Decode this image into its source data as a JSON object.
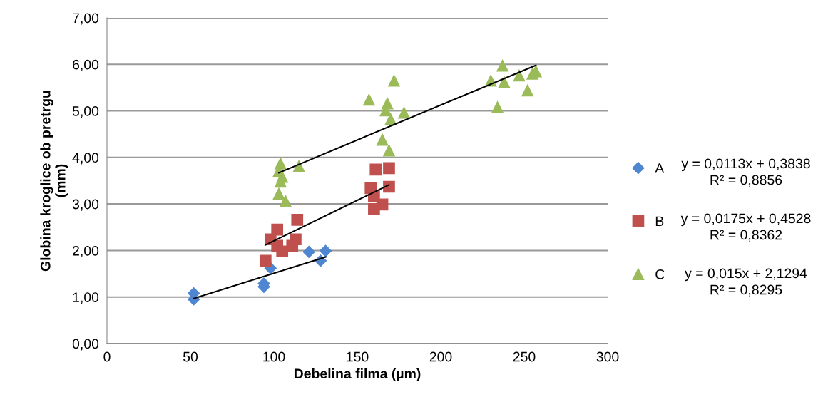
{
  "chart_data": {
    "type": "scatter",
    "xlabel": "Debelina filma (µm)",
    "ylabel": "Globina kroglice ob pretrgu\n(mm)",
    "xlim": [
      0,
      300
    ],
    "xticks": [
      0,
      50,
      100,
      150,
      200,
      250,
      300
    ],
    "ylim": [
      0,
      7
    ],
    "yticks": [
      {
        "value": 0,
        "label": "0,00"
      },
      {
        "value": 1,
        "label": "1,00"
      },
      {
        "value": 2,
        "label": "2,00"
      },
      {
        "value": 3,
        "label": "3,00"
      },
      {
        "value": 4,
        "label": "4,00"
      },
      {
        "value": 5,
        "label": "5,00"
      },
      {
        "value": 6,
        "label": "6,00"
      },
      {
        "value": 7,
        "label": "7,00"
      }
    ],
    "grid": "y",
    "legend": "right",
    "series": [
      {
        "name": "A",
        "color": "#4f86d0",
        "marker": "diamond",
        "x": [
          52,
          52,
          94,
          94,
          98,
          121,
          128,
          131
        ],
        "values": [
          1.08,
          0.95,
          1.29,
          1.22,
          1.62,
          1.97,
          1.78,
          1.99
        ]
      },
      {
        "name": "B",
        "color": "#c0504d",
        "marker": "square",
        "x": [
          95,
          98,
          102,
          105,
          102,
          113,
          114,
          111,
          161,
          169,
          158,
          169,
          160,
          165,
          160
        ],
        "values": [
          1.78,
          2.24,
          2.45,
          1.98,
          2.1,
          2.24,
          2.66,
          2.1,
          3.74,
          3.77,
          3.34,
          3.37,
          3.17,
          2.99,
          2.89
        ]
      },
      {
        "name": "C",
        "color": "#9bbb59",
        "marker": "triangle",
        "x": [
          104,
          103,
          103,
          104,
          107,
          115,
          105,
          157,
          168,
          167,
          170,
          178,
          165,
          169,
          172,
          230,
          237,
          238,
          234,
          247,
          252,
          255,
          257
        ],
        "values": [
          3.87,
          3.71,
          3.22,
          3.48,
          3.06,
          3.81,
          3.58,
          5.24,
          5.16,
          5.01,
          4.82,
          4.96,
          4.38,
          4.15,
          5.65,
          5.65,
          5.97,
          5.62,
          5.08,
          5.76,
          5.44,
          5.8,
          5.85
        ]
      },
      {
        "type": "line",
        "color": "#000000",
        "marker": "none",
        "x": [
          52,
          131
        ],
        "values": [
          0.97,
          1.86
        ]
      },
      {
        "type": "line",
        "color": "#000000",
        "marker": "none",
        "x": [
          95,
          169
        ],
        "values": [
          2.12,
          3.41
        ]
      },
      {
        "type": "line",
        "color": "#000000",
        "marker": "none",
        "x": [
          103,
          257
        ],
        "values": [
          3.67,
          5.98
        ]
      }
    ],
    "annotations": [
      "y = 0,0113x + 0,3838\nR² = 0,8856",
      "y = 0,0175x + 0,4528\nR² = 0,8362",
      "y = 0,015x + 2,1294\nR² = 0,8295"
    ]
  }
}
